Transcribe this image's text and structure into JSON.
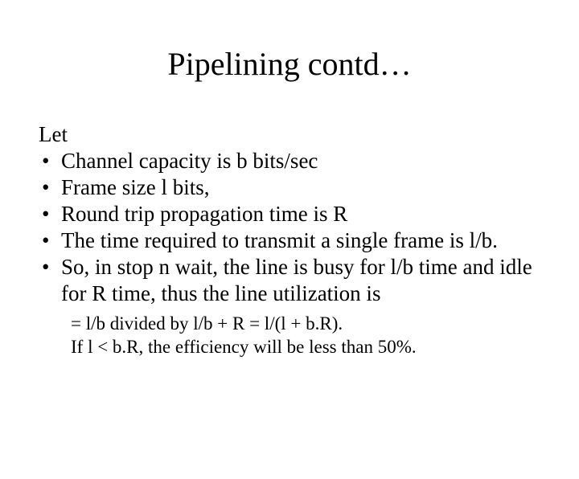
{
  "slide": {
    "title": "Pipelining contd…",
    "let_label": "Let",
    "bullets": [
      "Channel capacity is b bits/sec",
      "Frame size l bits,",
      "Round trip propagation time is R",
      "The time required to transmit a single frame is l/b.",
      "So, in stop n wait,  the line is busy for l/b time and idle for R time, thus the line utilization is"
    ],
    "sublines": [
      "= l/b divided by l/b + R = l/(l + b.R).",
      "If l < b.R, the efficiency will be less than 50%."
    ]
  },
  "style": {
    "background_color": "#ffffff",
    "text_color": "#000000",
    "title_fontsize": 40,
    "body_fontsize": 27,
    "sub_fontsize": 23,
    "font_family": "Times New Roman"
  }
}
